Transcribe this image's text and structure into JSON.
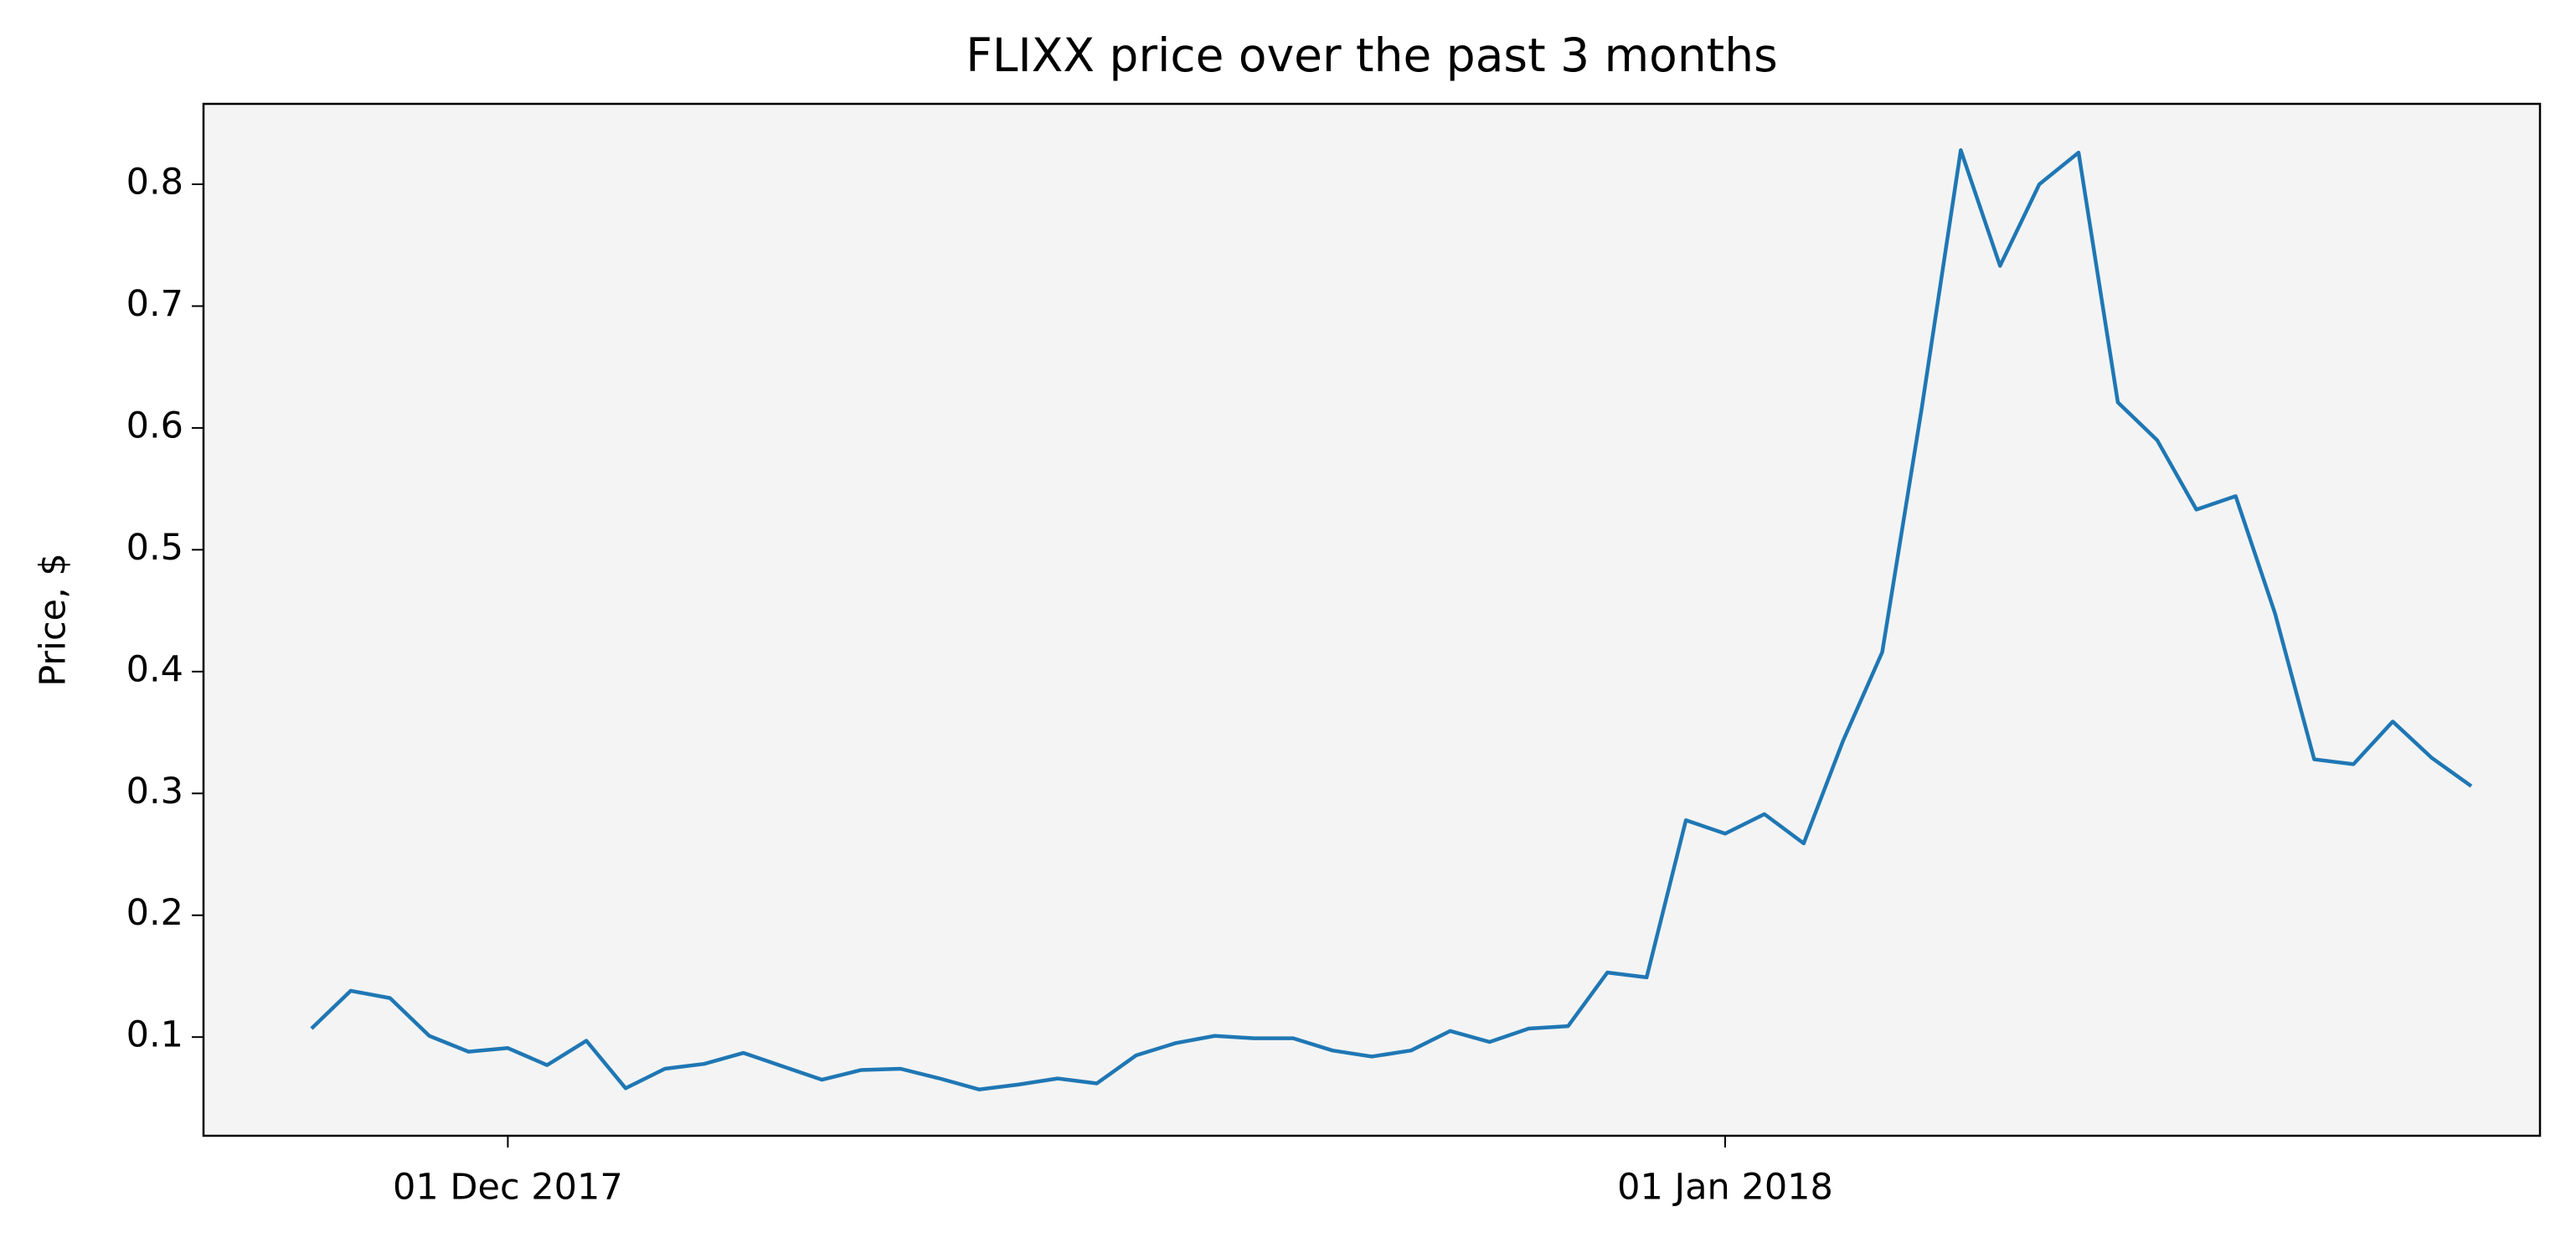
{
  "chart_data": {
    "type": "line",
    "title": "FLIXX price over the past 3 months",
    "ylabel": "Price, $",
    "x": [
      "2017-11-26",
      "2017-11-27",
      "2017-11-28",
      "2017-11-29",
      "2017-11-30",
      "2017-12-01",
      "2017-12-02",
      "2017-12-03",
      "2017-12-04",
      "2017-12-05",
      "2017-12-06",
      "2017-12-07",
      "2017-12-08",
      "2017-12-09",
      "2017-12-10",
      "2017-12-11",
      "2017-12-12",
      "2017-12-13",
      "2017-12-14",
      "2017-12-15",
      "2017-12-16",
      "2017-12-17",
      "2017-12-18",
      "2017-12-19",
      "2017-12-20",
      "2017-12-21",
      "2017-12-22",
      "2017-12-23",
      "2017-12-24",
      "2017-12-25",
      "2017-12-26",
      "2017-12-27",
      "2017-12-28",
      "2017-12-29",
      "2017-12-30",
      "2017-12-31",
      "2018-01-01",
      "2018-01-02",
      "2018-01-03",
      "2018-01-04",
      "2018-01-05",
      "2018-01-06",
      "2018-01-07",
      "2018-01-08",
      "2018-01-09",
      "2018-01-10",
      "2018-01-11",
      "2018-01-12",
      "2018-01-13",
      "2018-01-14",
      "2018-01-15",
      "2018-01-16",
      "2018-01-17",
      "2018-01-18",
      "2018-01-19",
      "2018-01-20"
    ],
    "values": [
      0.107,
      0.138,
      0.132,
      0.101,
      0.088,
      0.091,
      0.077,
      0.097,
      0.058,
      0.074,
      0.078,
      0.087,
      0.076,
      0.065,
      0.073,
      0.074,
      0.066,
      0.057,
      0.061,
      0.066,
      0.062,
      0.085,
      0.095,
      0.101,
      0.099,
      0.099,
      0.089,
      0.084,
      0.089,
      0.105,
      0.096,
      0.107,
      0.109,
      0.153,
      0.149,
      0.278,
      0.267,
      0.283,
      0.259,
      0.343,
      0.416,
      0.615,
      0.828,
      0.733,
      0.8,
      0.826,
      0.621,
      0.59,
      0.533,
      0.544,
      0.448,
      0.328,
      0.324,
      0.359,
      0.329,
      0.306
    ],
    "color": "#1f77b4",
    "background": "#f4f4f4",
    "xlim": [
      "2017-11-23T06:00",
      "2018-01-21T18:00"
    ],
    "xticks": [
      {
        "value": "2017-12-01",
        "label": "01 Dec 2017"
      },
      {
        "value": "2018-01-01",
        "label": "01 Jan 2018"
      }
    ],
    "ylim": [
      0.019,
      0.866
    ],
    "yticks": [
      0.1,
      0.2,
      0.3,
      0.4,
      0.5,
      0.6,
      0.7,
      0.8
    ]
  }
}
